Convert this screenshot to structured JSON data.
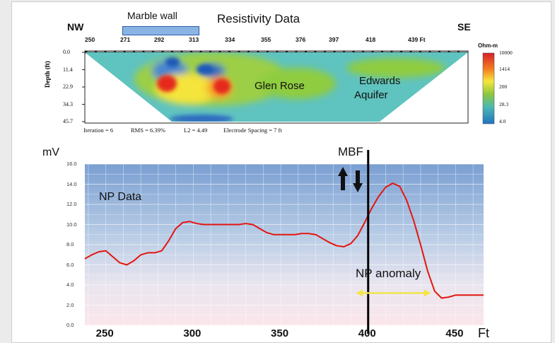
{
  "header": {
    "title": "Resistivity Data",
    "marble_wall": "Marble wall",
    "nw": "NW",
    "se": "SE"
  },
  "section": {
    "distance_ticks": [
      "250",
      "271",
      "292",
      "313",
      "334",
      "355",
      "376",
      "397",
      "418",
      "439 Ft"
    ],
    "depth_axis_label": "Depth (ft)",
    "depth_ticks": [
      "0.0",
      "11.4",
      "22.9",
      "34.3",
      "45.7"
    ],
    "colorbar_unit": "Ohm-m",
    "colorbar_values": [
      "10000",
      "1414",
      "200",
      "28.3",
      "4.0"
    ],
    "colorbar_colors": [
      "#d6202a",
      "#f47a1f",
      "#f5e73a",
      "#8ec63f",
      "#4bb9b0",
      "#1f73c2"
    ],
    "iteration": "Iteration = 6",
    "rms": "RMS = 6.39%",
    "l2": "L2 = 4.49",
    "spacing": "Electrode Spacing = 7 ft",
    "regions": {
      "glen_rose": "Glen Rose",
      "edwards_1": "Edwards",
      "edwards_2": "Aquifer"
    }
  },
  "np_chart": {
    "y_unit": "mV",
    "mbf_label": "MBF",
    "np_data_label": "NP Data",
    "np_anomaly_label": "NP anomaly",
    "x_unit": "Ft",
    "line_color": "#e3160f",
    "anomaly_arrow_color": "#f3e44a"
  },
  "chart_data": {
    "type": "line",
    "title": "",
    "xlabel": "Ft",
    "ylabel": "mV",
    "xlim": [
      238,
      466
    ],
    "ylim": [
      0,
      16
    ],
    "x_ticks": [
      250,
      300,
      350,
      400,
      450
    ],
    "x_tick_labels": [
      "250",
      "300",
      "350",
      "400",
      "450"
    ],
    "y_ticks": [
      0,
      2,
      4,
      6,
      8,
      10,
      12,
      14,
      16
    ],
    "y_tick_labels": [
      "0.0",
      "2.0",
      "4.0",
      "6.0",
      "8.0",
      "10.0",
      "12.0",
      "14.0",
      "16.0"
    ],
    "grid": true,
    "series": [
      {
        "name": "",
        "x": [
          238,
          242,
          246,
          250,
          254,
          258,
          262,
          266,
          270,
          274,
          278,
          282,
          286,
          290,
          294,
          298,
          302,
          306,
          310,
          314,
          318,
          322,
          326,
          330,
          334,
          338,
          342,
          346,
          350,
          354,
          358,
          362,
          366,
          370,
          374,
          378,
          382,
          386,
          390,
          394,
          398,
          402,
          406,
          410,
          414,
          418,
          422,
          426,
          430,
          434,
          438,
          442,
          446,
          450,
          454,
          458,
          462,
          466
        ],
        "values": [
          6.6,
          7.0,
          7.3,
          7.4,
          6.8,
          6.2,
          6.0,
          6.4,
          7.0,
          7.2,
          7.2,
          7.4,
          8.4,
          9.6,
          10.2,
          10.3,
          10.1,
          10.0,
          10.0,
          10.0,
          10.0,
          10.0,
          10.0,
          10.1,
          10.0,
          9.6,
          9.2,
          9.0,
          9.0,
          9.0,
          9.0,
          9.1,
          9.1,
          9.0,
          8.6,
          8.2,
          7.9,
          7.8,
          8.1,
          8.9,
          10.2,
          11.6,
          12.8,
          13.7,
          14.1,
          13.8,
          12.4,
          10.4,
          8.0,
          5.4,
          3.4,
          2.7,
          2.8,
          3.0,
          3.0,
          3.0,
          3.0,
          3.0
        ]
      }
    ],
    "annotations": [
      {
        "text": "NP Data"
      },
      {
        "text": "MBF",
        "x": 400
      },
      {
        "text": "NP anomaly",
        "x_range": [
          393,
          436
        ],
        "y": 3.2
      }
    ]
  }
}
